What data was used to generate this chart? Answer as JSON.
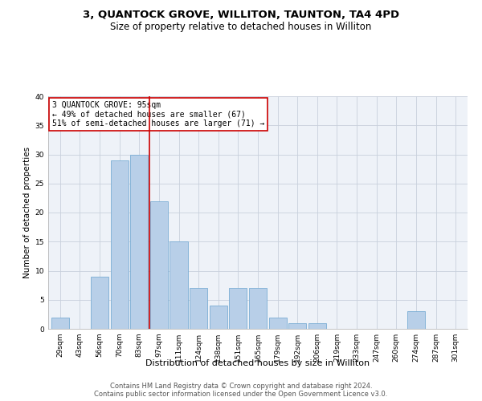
{
  "title": "3, QUANTOCK GROVE, WILLITON, TAUNTON, TA4 4PD",
  "subtitle": "Size of property relative to detached houses in Williton",
  "xlabel": "Distribution of detached houses by size in Williton",
  "ylabel": "Number of detached properties",
  "categories": [
    "29sqm",
    "43sqm",
    "56sqm",
    "70sqm",
    "83sqm",
    "97sqm",
    "111sqm",
    "124sqm",
    "138sqm",
    "151sqm",
    "165sqm",
    "179sqm",
    "192sqm",
    "206sqm",
    "219sqm",
    "233sqm",
    "247sqm",
    "260sqm",
    "274sqm",
    "287sqm",
    "301sqm"
  ],
  "values": [
    2,
    0,
    9,
    29,
    30,
    22,
    15,
    7,
    4,
    7,
    7,
    2,
    1,
    1,
    0,
    0,
    0,
    0,
    3,
    0,
    0
  ],
  "bar_color": "#b8cfe8",
  "bar_edge_color": "#7aadd4",
  "vline_index": 4.5,
  "vline_color": "#cc0000",
  "annotation_line1": "3 QUANTOCK GROVE: 95sqm",
  "annotation_line2": "← 49% of detached houses are smaller (67)",
  "annotation_line3": "51% of semi-detached houses are larger (71) →",
  "annotation_box_color": "#ffffff",
  "annotation_box_edge": "#cc0000",
  "ylim": [
    0,
    40
  ],
  "yticks": [
    0,
    5,
    10,
    15,
    20,
    25,
    30,
    35,
    40
  ],
  "grid_color": "#c8d0dc",
  "bg_color": "#eef2f8",
  "footer_line1": "Contains HM Land Registry data © Crown copyright and database right 2024.",
  "footer_line2": "Contains public sector information licensed under the Open Government Licence v3.0.",
  "title_fontsize": 9.5,
  "subtitle_fontsize": 8.5,
  "xlabel_fontsize": 8,
  "ylabel_fontsize": 7.5,
  "tick_fontsize": 6.5,
  "annotation_fontsize": 7,
  "footer_fontsize": 6
}
